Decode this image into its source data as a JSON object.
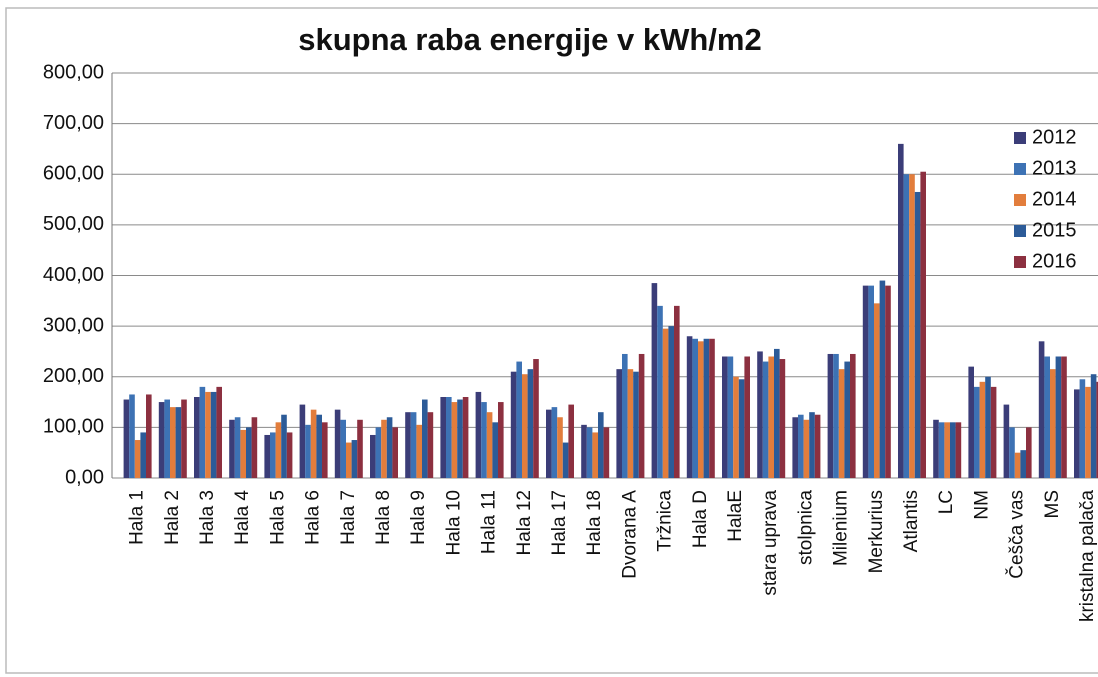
{
  "chart_data": {
    "type": "bar",
    "title": "skupna raba energije v kWh/m2",
    "categories": [
      "Hala 1",
      "Hala 2",
      "Hala 3",
      "Hala 4",
      "Hala 5",
      "Hala 6",
      "Hala 7",
      "Hala 8",
      "Hala 9",
      "Hala 10",
      "Hala 11",
      "Hala 12",
      "Hala 17",
      "Hala 18",
      "Dvorana A",
      "Tržnica",
      "Hala D",
      "HalaE",
      "stara uprava",
      "stolpnica",
      "Milenium",
      "Merkurius",
      "Atlantis",
      "LC",
      "NM",
      "Češča vas",
      "MS",
      "kristalna palača"
    ],
    "series": [
      {
        "name": "2012",
        "color": "#3b3d78",
        "values": [
          155,
          150,
          160,
          115,
          85,
          145,
          135,
          85,
          130,
          160,
          170,
          210,
          135,
          105,
          215,
          385,
          280,
          240,
          250,
          120,
          245,
          380,
          660,
          115,
          220,
          145,
          270,
          175
        ]
      },
      {
        "name": "2013",
        "color": "#3d72b4",
        "values": [
          165,
          155,
          180,
          120,
          90,
          105,
          115,
          100,
          130,
          160,
          150,
          230,
          140,
          100,
          245,
          340,
          275,
          240,
          230,
          125,
          245,
          380,
          600,
          110,
          180,
          100,
          240,
          195
        ]
      },
      {
        "name": "2014",
        "color": "#e27d3c",
        "values": [
          75,
          140,
          170,
          95,
          110,
          135,
          70,
          115,
          105,
          150,
          130,
          205,
          120,
          90,
          215,
          295,
          270,
          200,
          240,
          115,
          215,
          345,
          600,
          110,
          190,
          50,
          215,
          180
        ]
      },
      {
        "name": "2015",
        "color": "#2c5b98",
        "values": [
          90,
          140,
          170,
          100,
          125,
          125,
          75,
          120,
          155,
          155,
          110,
          215,
          70,
          130,
          210,
          300,
          275,
          195,
          255,
          130,
          230,
          390,
          565,
          110,
          200,
          55,
          240,
          205
        ]
      },
      {
        "name": "2016",
        "color": "#8c3040",
        "values": [
          165,
          155,
          180,
          120,
          90,
          110,
          115,
          100,
          130,
          160,
          150,
          235,
          145,
          100,
          245,
          340,
          275,
          240,
          235,
          125,
          245,
          380,
          605,
          110,
          180,
          100,
          240,
          190
        ]
      }
    ],
    "ylim": [
      0,
      800
    ],
    "yticks": [
      {
        "value": 0,
        "label": "0,00"
      },
      {
        "value": 100,
        "label": "100,00"
      },
      {
        "value": 200,
        "label": "200,00"
      },
      {
        "value": 300,
        "label": "300,00"
      },
      {
        "value": 400,
        "label": "400,00"
      },
      {
        "value": 500,
        "label": "500,00"
      },
      {
        "value": 600,
        "label": "600,00"
      },
      {
        "value": 700,
        "label": "700,00"
      },
      {
        "value": 800,
        "label": "800,00"
      }
    ],
    "grid": true,
    "legend": "right"
  }
}
